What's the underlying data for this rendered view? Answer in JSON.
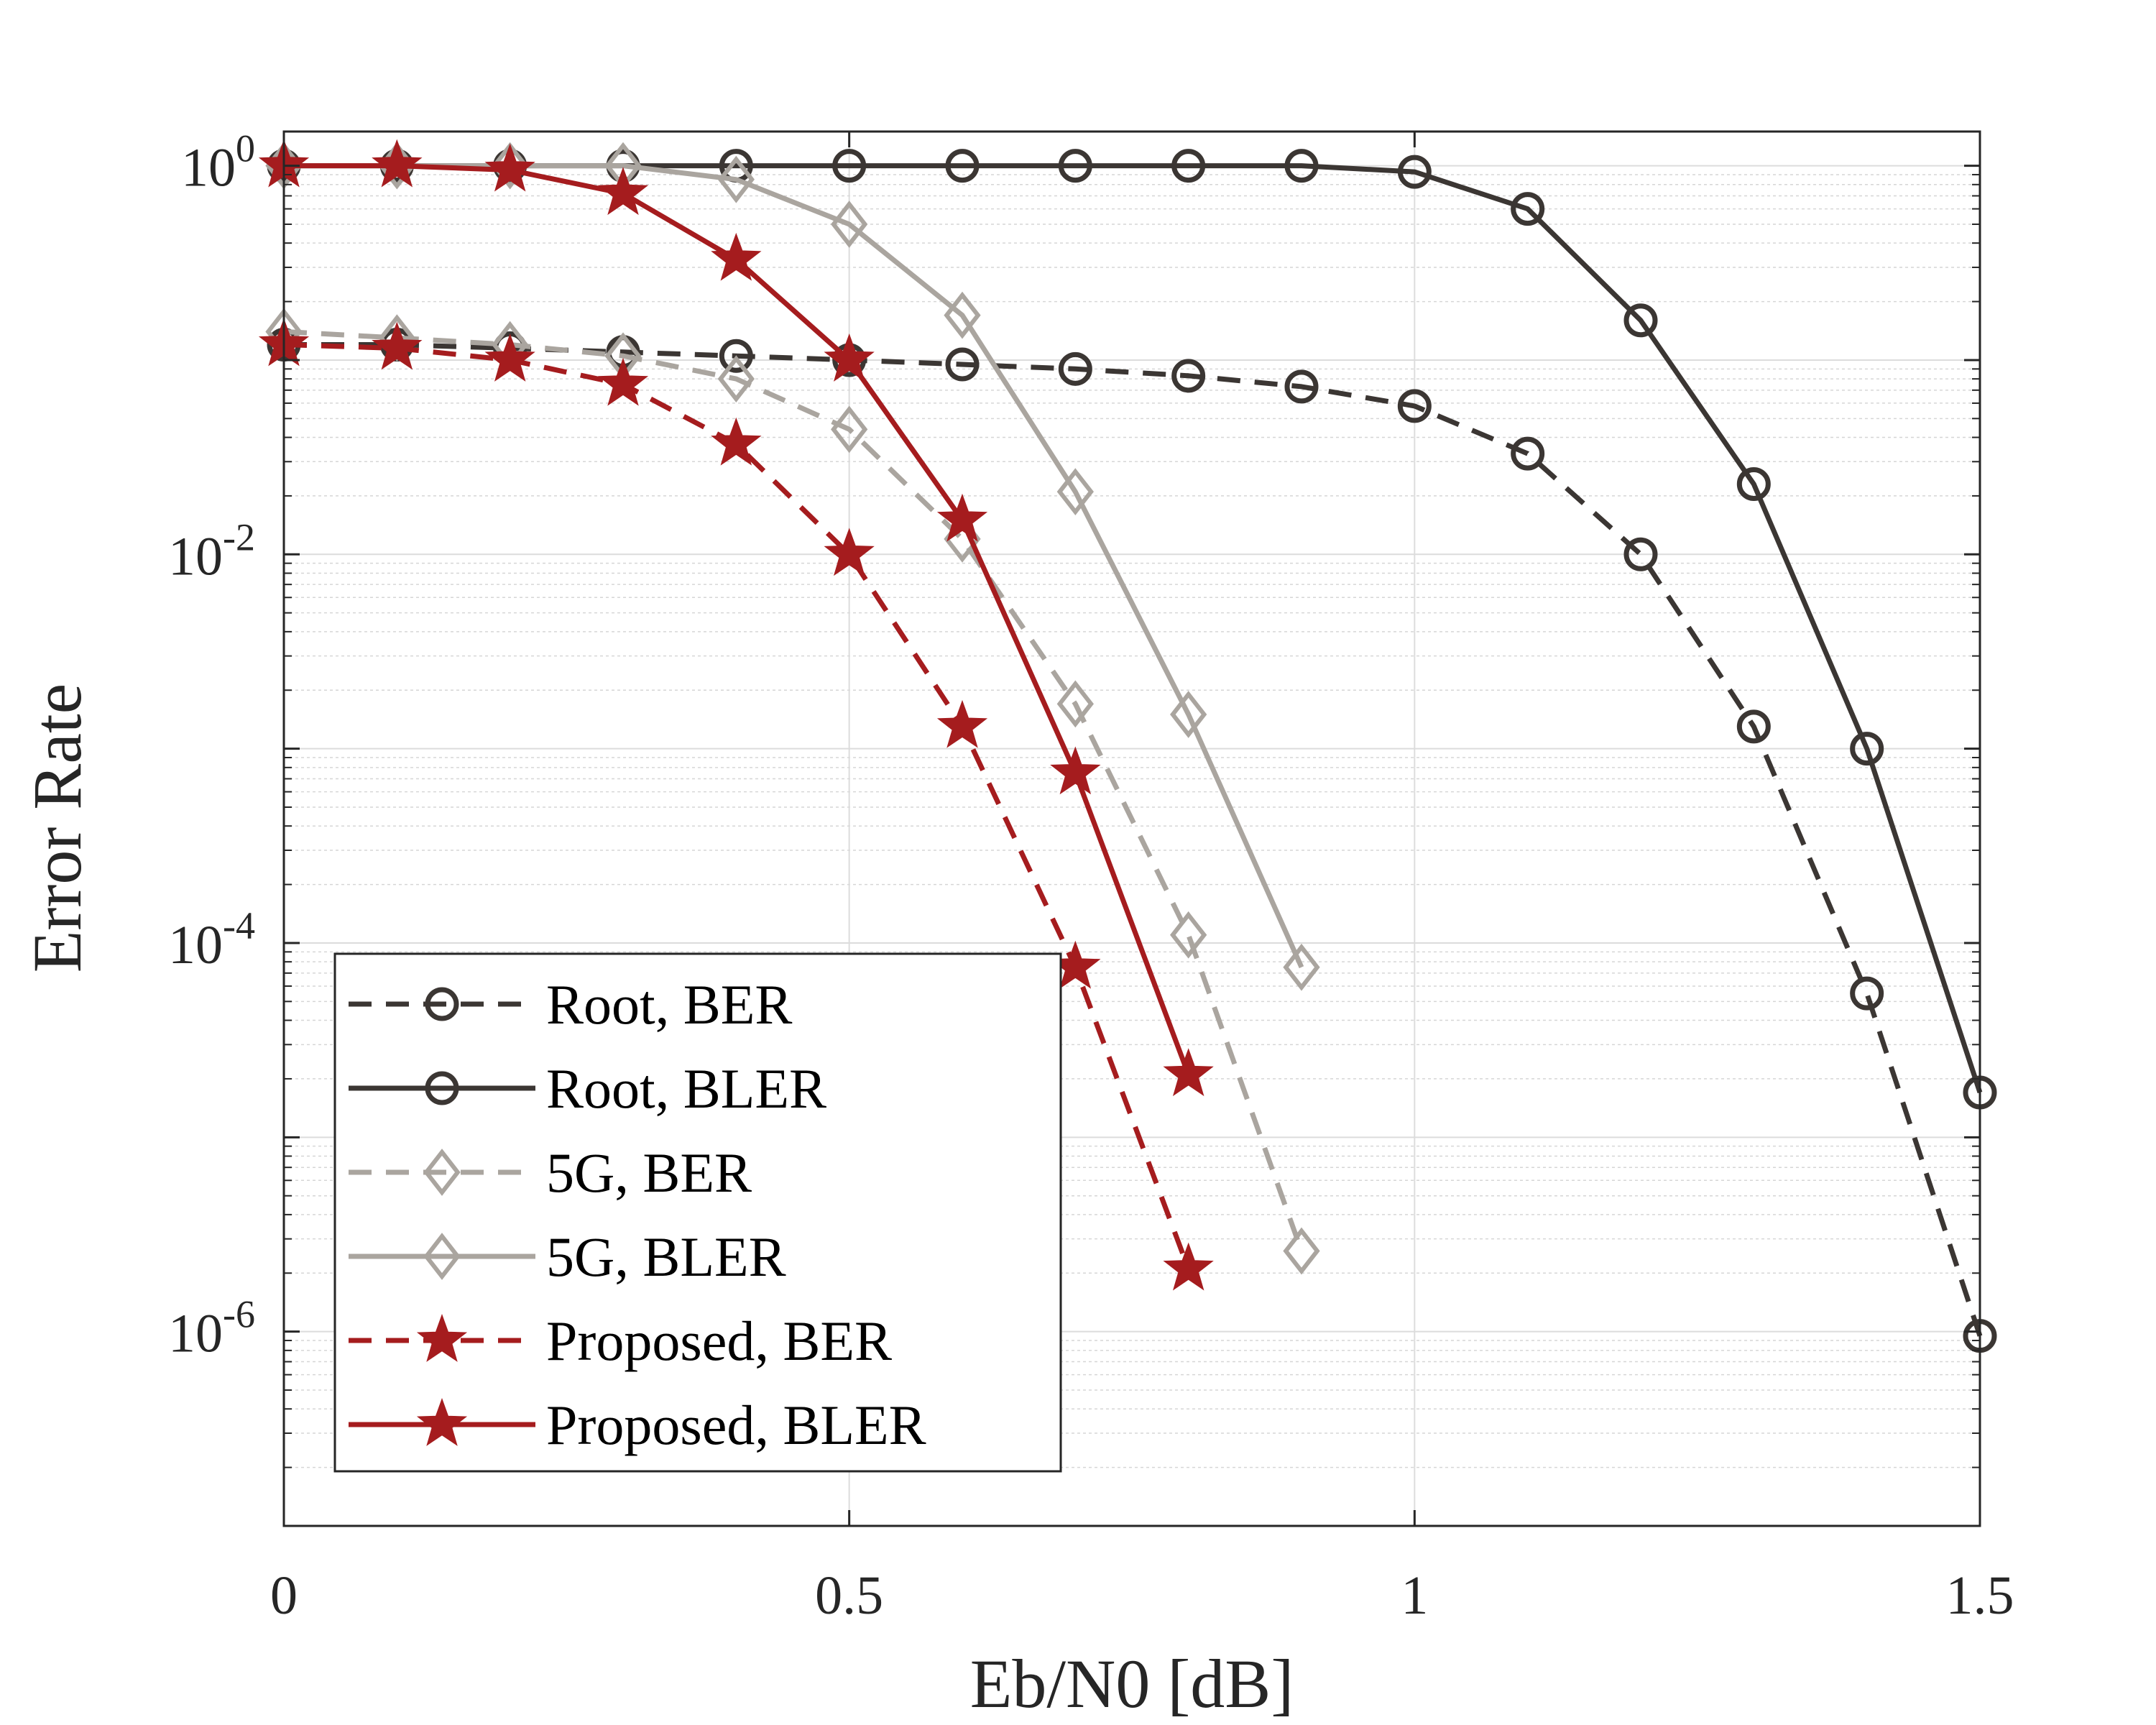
{
  "chart_data": {
    "type": "line",
    "title": "",
    "xlabel": "Eb/N0 [dB]",
    "ylabel": "Error Rate",
    "xscale": "linear",
    "yscale": "log",
    "xlim": [
      0,
      1.5
    ],
    "ylim": [
      1e-07,
      1.5
    ],
    "grid": true,
    "legend_position": "bottom-left",
    "x_ticks": [
      {
        "value": 0,
        "label": "0"
      },
      {
        "value": 0.5,
        "label": "0.5"
      },
      {
        "value": 1,
        "label": "1"
      },
      {
        "value": 1.5,
        "label": "1.5"
      }
    ],
    "y_ticks": [
      {
        "exp": 0,
        "base": "10",
        "sup": "0"
      },
      {
        "exp": -2,
        "base": "10",
        "sup": "-2"
      },
      {
        "exp": -4,
        "base": "10",
        "sup": "-4"
      },
      {
        "exp": -6,
        "base": "10",
        "sup": "-6"
      }
    ],
    "series": [
      {
        "name": "Root, BER",
        "color": "#3b3633",
        "dash": "dashed",
        "marker": "circle",
        "x": [
          0,
          0.1,
          0.2,
          0.3,
          0.4,
          0.5,
          0.6,
          0.7,
          0.8,
          0.9,
          1.0,
          1.1,
          1.2,
          1.3,
          1.4,
          1.5
        ],
        "y": [
          0.12,
          0.12,
          0.115,
          0.11,
          0.105,
          0.1,
          0.095,
          0.09,
          0.083,
          0.073,
          0.058,
          0.033,
          0.01,
          0.0013,
          5.5e-05,
          9.5e-07
        ]
      },
      {
        "name": "Root, BLER",
        "color": "#3b3633",
        "dash": "solid",
        "marker": "circle",
        "x": [
          0,
          0.1,
          0.2,
          0.3,
          0.4,
          0.5,
          0.6,
          0.7,
          0.8,
          0.9,
          1.0,
          1.1,
          1.2,
          1.3,
          1.4,
          1.5
        ],
        "y": [
          1,
          1,
          1,
          1,
          1,
          1,
          1,
          1,
          1,
          1,
          0.93,
          0.6,
          0.16,
          0.023,
          0.001,
          1.7e-05
        ]
      },
      {
        "name": "5G, BER",
        "color": "#aaa59f",
        "dash": "dashed",
        "marker": "diamond",
        "x": [
          0,
          0.1,
          0.2,
          0.3,
          0.4,
          0.5,
          0.6,
          0.7,
          0.8,
          0.9
        ],
        "y": [
          0.14,
          0.13,
          0.12,
          0.105,
          0.08,
          0.044,
          0.012,
          0.0017,
          0.00011,
          2.6e-06
        ]
      },
      {
        "name": "5G, BLER",
        "color": "#aaa59f",
        "dash": "solid",
        "marker": "diamond",
        "x": [
          0,
          0.1,
          0.2,
          0.3,
          0.4,
          0.5,
          0.6,
          0.7,
          0.8,
          0.9
        ],
        "y": [
          1,
          1,
          1,
          1,
          0.85,
          0.5,
          0.17,
          0.021,
          0.0015,
          7.5e-05
        ]
      },
      {
        "name": "Proposed, BER",
        "color": "#a51c1e",
        "dash": "dashed",
        "marker": "star",
        "x": [
          0,
          0.1,
          0.2,
          0.3,
          0.4,
          0.5,
          0.6,
          0.7,
          0.8
        ],
        "y": [
          0.12,
          0.115,
          0.1,
          0.075,
          0.037,
          0.01,
          0.0013,
          7.5e-05,
          2.1e-06
        ]
      },
      {
        "name": "Proposed, BLER",
        "color": "#a51c1e",
        "dash": "solid",
        "marker": "star",
        "x": [
          0,
          0.1,
          0.2,
          0.3,
          0.4,
          0.5,
          0.6,
          0.7,
          0.8
        ],
        "y": [
          1,
          1,
          0.95,
          0.72,
          0.33,
          0.1,
          0.015,
          0.00075,
          2.1e-05
        ]
      }
    ]
  }
}
